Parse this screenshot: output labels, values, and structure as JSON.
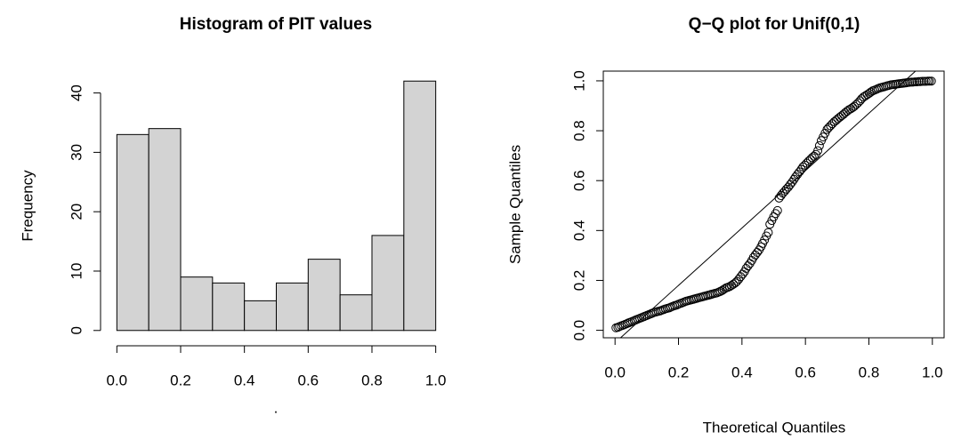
{
  "chart_data": [
    {
      "type": "histogram",
      "title": "Histogram of PIT values",
      "x_label": ".",
      "y_label": "Frequency",
      "bins": [
        0,
        0.1,
        0.2,
        0.3,
        0.4,
        0.5,
        0.6,
        0.7,
        0.8,
        0.9,
        1
      ],
      "values": [
        33,
        34,
        9,
        8,
        5,
        8,
        12,
        6,
        16,
        42
      ],
      "color": "#d3d3d3",
      "xlim": [
        -0.04,
        1.04
      ],
      "ylim": [
        -1.68,
        43.68
      ],
      "xticks": [
        {
          "value": 0,
          "label": "0.0"
        },
        0.2,
        0.4,
        0.6,
        0.8,
        {
          "value": 1,
          "label": "1.0"
        }
      ],
      "yticks": [
        0,
        10,
        20,
        30,
        40
      ]
    },
    {
      "type": "scatter",
      "title": "Q−Q plot for Unif(0,1)",
      "x_label": "Theoretical Quantiles",
      "y_label": "Sample Quantiles",
      "x": [
        0.003,
        0.009,
        0.014,
        0.02,
        0.026,
        0.032,
        0.038,
        0.043,
        0.049,
        0.055,
        0.061,
        0.066,
        0.072,
        0.078,
        0.084,
        0.09,
        0.095,
        0.101,
        0.107,
        0.113,
        0.118,
        0.124,
        0.13,
        0.136,
        0.142,
        0.147,
        0.153,
        0.159,
        0.165,
        0.171,
        0.176,
        0.182,
        0.188,
        0.194,
        0.199,
        0.205,
        0.211,
        0.217,
        0.223,
        0.228,
        0.234,
        0.24,
        0.246,
        0.251,
        0.257,
        0.263,
        0.269,
        0.275,
        0.28,
        0.286,
        0.292,
        0.298,
        0.303,
        0.309,
        0.315,
        0.321,
        0.327,
        0.332,
        0.338,
        0.344,
        0.35,
        0.355,
        0.361,
        0.367,
        0.373,
        0.379,
        0.384,
        0.39,
        0.396,
        0.402,
        0.408,
        0.413,
        0.419,
        0.425,
        0.431,
        0.436,
        0.442,
        0.448,
        0.454,
        0.46,
        0.465,
        0.471,
        0.477,
        0.483,
        0.488,
        0.494,
        0.5,
        0.506,
        0.512,
        0.517,
        0.523,
        0.529,
        0.535,
        0.54,
        0.546,
        0.552,
        0.558,
        0.564,
        0.569,
        0.575,
        0.581,
        0.587,
        0.592,
        0.598,
        0.604,
        0.61,
        0.616,
        0.621,
        0.627,
        0.633,
        0.639,
        0.644,
        0.65,
        0.656,
        0.662,
        0.668,
        0.673,
        0.679,
        0.685,
        0.691,
        0.697,
        0.702,
        0.708,
        0.714,
        0.72,
        0.725,
        0.731,
        0.737,
        0.743,
        0.749,
        0.754,
        0.76,
        0.766,
        0.772,
        0.777,
        0.783,
        0.789,
        0.795,
        0.801,
        0.806,
        0.812,
        0.818,
        0.824,
        0.829,
        0.835,
        0.841,
        0.847,
        0.853,
        0.858,
        0.864,
        0.87,
        0.876,
        0.882,
        0.887,
        0.893,
        0.899,
        0.905,
        0.91,
        0.916,
        0.922,
        0.928,
        0.934,
        0.939,
        0.945,
        0.951,
        0.957,
        0.962,
        0.968,
        0.974,
        0.98,
        0.986,
        0.991,
        0.997
      ],
      "values": [
        0.01,
        0.012,
        0.015,
        0.018,
        0.021,
        0.024,
        0.027,
        0.03,
        0.033,
        0.036,
        0.039,
        0.042,
        0.045,
        0.048,
        0.051,
        0.054,
        0.057,
        0.06,
        0.063,
        0.066,
        0.069,
        0.072,
        0.074,
        0.076,
        0.078,
        0.08,
        0.083,
        0.086,
        0.088,
        0.09,
        0.093,
        0.096,
        0.099,
        0.101,
        0.104,
        0.107,
        0.11,
        0.113,
        0.116,
        0.118,
        0.12,
        0.122,
        0.124,
        0.126,
        0.128,
        0.13,
        0.132,
        0.134,
        0.136,
        0.138,
        0.14,
        0.142,
        0.144,
        0.146,
        0.148,
        0.15,
        0.153,
        0.156,
        0.16,
        0.165,
        0.17,
        0.172,
        0.175,
        0.18,
        0.185,
        0.19,
        0.196,
        0.205,
        0.215,
        0.225,
        0.235,
        0.248,
        0.258,
        0.268,
        0.28,
        0.292,
        0.302,
        0.312,
        0.322,
        0.335,
        0.348,
        0.362,
        0.378,
        0.392,
        0.425,
        0.44,
        0.455,
        0.468,
        0.48,
        0.53,
        0.54,
        0.55,
        0.558,
        0.566,
        0.574,
        0.584,
        0.594,
        0.605,
        0.615,
        0.625,
        0.635,
        0.645,
        0.655,
        0.662,
        0.67,
        0.678,
        0.685,
        0.692,
        0.698,
        0.705,
        0.72,
        0.74,
        0.76,
        0.775,
        0.79,
        0.805,
        0.812,
        0.82,
        0.828,
        0.836,
        0.842,
        0.848,
        0.854,
        0.86,
        0.866,
        0.872,
        0.878,
        0.884,
        0.888,
        0.893,
        0.898,
        0.905,
        0.912,
        0.92,
        0.928,
        0.935,
        0.94,
        0.945,
        0.95,
        0.955,
        0.96,
        0.963,
        0.966,
        0.969,
        0.972,
        0.974,
        0.976,
        0.978,
        0.98,
        0.982,
        0.984,
        0.985,
        0.986,
        0.987,
        0.988,
        0.989,
        0.99,
        0.991,
        0.992,
        0.993,
        0.994,
        0.995,
        0.995,
        0.996,
        0.996,
        0.997,
        0.997,
        0.998,
        0.998,
        0.998,
        0.999,
        0.999,
        0.999
      ],
      "color": "#000000",
      "reference_line": {
        "intercept": -0.05,
        "slope": 1.15
      },
      "xlim": [
        -0.037,
        1.037
      ],
      "ylim": [
        -0.03,
        1.039
      ],
      "xticks": [
        {
          "value": 0,
          "label": "0.0"
        },
        0.2,
        0.4,
        0.6,
        0.8,
        {
          "value": 1,
          "label": "1.0"
        }
      ],
      "yticks": [
        {
          "value": 0,
          "label": "0.0"
        },
        0.2,
        0.4,
        0.6,
        0.8,
        {
          "value": 1,
          "label": "1.0"
        }
      ]
    }
  ]
}
